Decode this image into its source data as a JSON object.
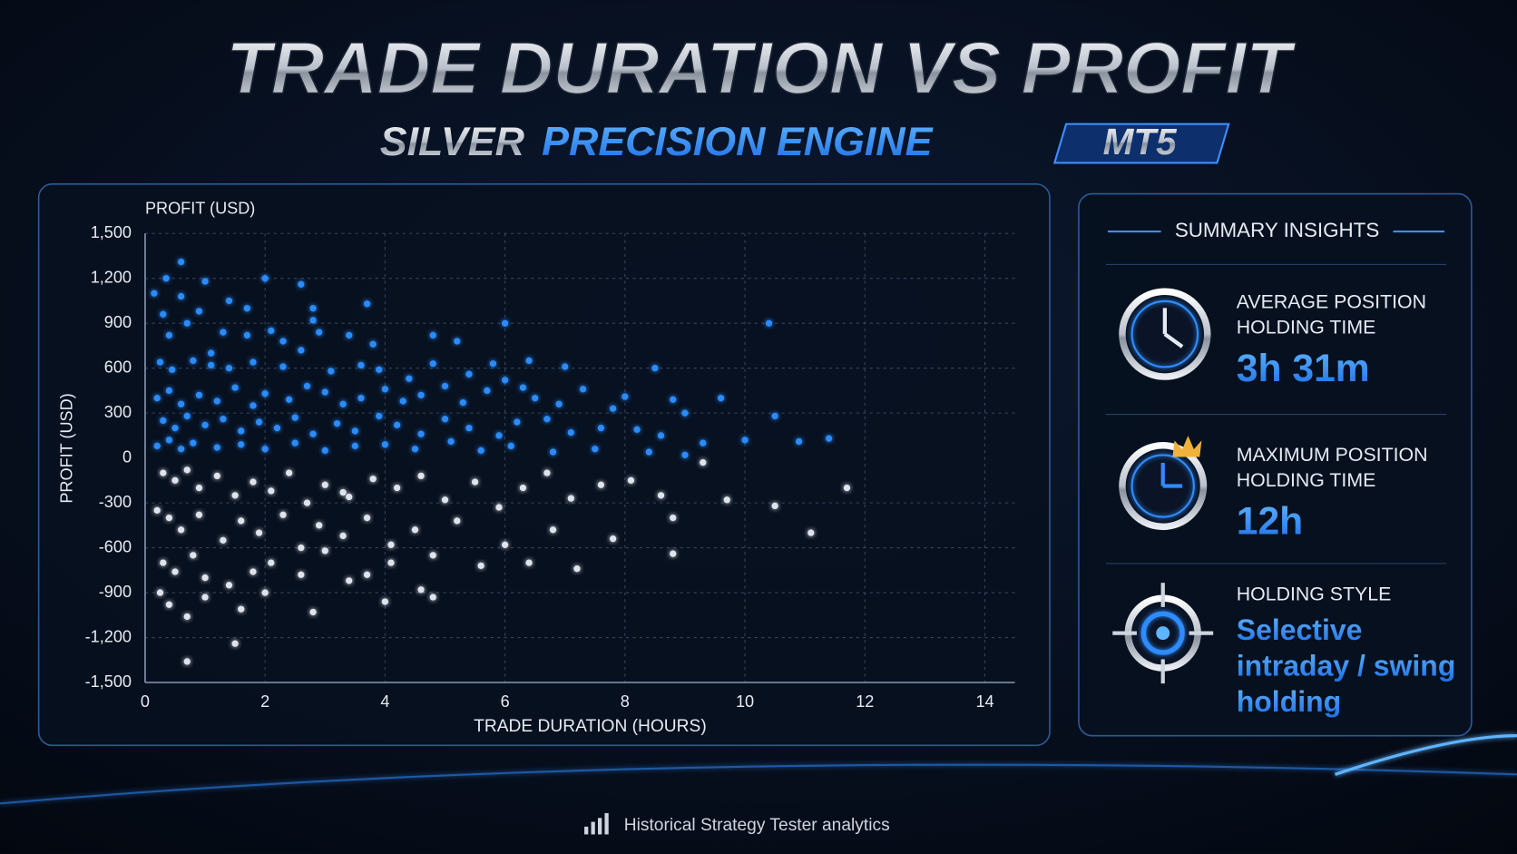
{
  "header": {
    "title": "TRADE DURATION VS PROFIT",
    "subtitle_silver": "SILVER",
    "subtitle_blue": "PRECISION ENGINE",
    "badge": "MT5"
  },
  "chart_data": {
    "type": "scatter",
    "xlabel": "TRADE DURATION (HOURS)",
    "ylabel": "PROFIT (USD)",
    "xlim": [
      0,
      14.5
    ],
    "ylim": [
      -1500,
      1500
    ],
    "xticks": [
      0,
      2,
      4,
      6,
      8,
      10,
      12,
      14
    ],
    "yticks": [
      {
        "value": 1500,
        "label": "1,500"
      },
      {
        "value": 1200,
        "label": "1,200"
      },
      900,
      600,
      300,
      0,
      -300,
      -600,
      -900,
      {
        "value": -1200,
        "label": "-1,200"
      },
      {
        "value": -1500,
        "label": "-1,500"
      }
    ],
    "grid": true,
    "positive_color": "#2a8cff",
    "negative_color": "#dfe4ec",
    "x": [
      0.15,
      0.35,
      0.6,
      0.3,
      0.6,
      1.0,
      0.9,
      1.4,
      1.7,
      2.0,
      2.6,
      2.8,
      2.8,
      3.7,
      6.0,
      10.4,
      0.4,
      0.7,
      1.1,
      1.3,
      1.7,
      2.1,
      2.3,
      2.9,
      3.4,
      3.8,
      4.8,
      5.2,
      0.25,
      0.45,
      0.8,
      1.1,
      1.4,
      1.8,
      2.3,
      2.6,
      3.1,
      3.6,
      3.9,
      4.4,
      4.8,
      5.4,
      5.8,
      6.4,
      7.0,
      8.5,
      0.2,
      0.4,
      0.6,
      0.9,
      1.2,
      1.5,
      1.8,
      2.0,
      2.4,
      2.7,
      3.0,
      3.3,
      3.6,
      4.0,
      4.3,
      4.6,
      5.0,
      5.3,
      5.7,
      6.0,
      6.3,
      6.5,
      6.9,
      7.3,
      7.8,
      8.0,
      8.8,
      9.0,
      9.6,
      10.5,
      0.3,
      0.5,
      0.7,
      1.0,
      1.3,
      1.6,
      1.9,
      2.2,
      2.5,
      2.8,
      3.2,
      3.5,
      3.9,
      4.2,
      4.6,
      5.0,
      5.4,
      5.9,
      6.2,
      6.7,
      7.1,
      7.6,
      8.2,
      8.6,
      9.3,
      10.0,
      10.9,
      11.4,
      0.2,
      0.4,
      0.6,
      0.8,
      1.2,
      1.6,
      2.0,
      2.5,
      3.0,
      3.5,
      4.0,
      4.5,
      5.1,
      5.6,
      6.1,
      6.8,
      7.5,
      8.4,
      9.0,
      0.3,
      0.5,
      0.7,
      0.9,
      1.2,
      1.5,
      1.8,
      2.1,
      2.4,
      2.7,
      3.0,
      3.4,
      3.8,
      4.2,
      4.6,
      5.0,
      5.5,
      5.9,
      6.3,
      6.7,
      7.1,
      7.6,
      8.1,
      8.6,
      9.3,
      9.7,
      10.5,
      11.7,
      0.2,
      0.4,
      0.6,
      0.9,
      1.3,
      1.6,
      1.9,
      2.3,
      2.6,
      2.9,
      3.3,
      3.7,
      4.1,
      4.5,
      4.8,
      5.2,
      5.6,
      6.0,
      6.4,
      6.8,
      7.2,
      7.8,
      8.8,
      8.8,
      11.1,
      0.3,
      0.5,
      0.8,
      1.0,
      1.4,
      1.8,
      2.1,
      2.6,
      3.0,
      3.4,
      3.7,
      4.1,
      4.8,
      0.4,
      0.7,
      1.0,
      1.6,
      2.0,
      2.8,
      4.0,
      0.7,
      1.5,
      0.25,
      4.6,
      3.3
    ],
    "values": [
      1100,
      1200,
      1310,
      960,
      1080,
      1180,
      980,
      1050,
      1000,
      1200,
      1160,
      1000,
      920,
      1030,
      900,
      900,
      820,
      900,
      700,
      840,
      820,
      850,
      780,
      840,
      820,
      760,
      820,
      780,
      640,
      590,
      650,
      620,
      600,
      640,
      610,
      720,
      580,
      620,
      590,
      530,
      630,
      560,
      630,
      650,
      610,
      600,
      400,
      450,
      360,
      420,
      380,
      470,
      350,
      430,
      390,
      480,
      440,
      360,
      400,
      460,
      380,
      420,
      480,
      370,
      450,
      520,
      470,
      400,
      360,
      460,
      330,
      410,
      390,
      300,
      400,
      280,
      250,
      200,
      280,
      220,
      260,
      180,
      240,
      200,
      270,
      160,
      230,
      180,
      280,
      220,
      160,
      260,
      200,
      150,
      240,
      260,
      170,
      200,
      190,
      150,
      100,
      120,
      110,
      130,
      80,
      120,
      60,
      100,
      70,
      90,
      60,
      100,
      50,
      80,
      90,
      60,
      110,
      50,
      80,
      40,
      60,
      40,
      20,
      -100,
      -150,
      -80,
      -200,
      -120,
      -250,
      -160,
      -220,
      -100,
      -300,
      -180,
      -260,
      -140,
      -200,
      -120,
      -280,
      -160,
      -330,
      -200,
      -100,
      -270,
      -180,
      -150,
      -250,
      -30,
      -280,
      -320,
      -200,
      -350,
      -400,
      -480,
      -380,
      -550,
      -420,
      -500,
      -380,
      -600,
      -450,
      -520,
      -400,
      -580,
      -480,
      -650,
      -420,
      -720,
      -580,
      -700,
      -480,
      -740,
      -540,
      -400,
      -640,
      -500,
      -700,
      -760,
      -650,
      -800,
      -850,
      -760,
      -700,
      -780,
      -620,
      -820,
      -780,
      -700,
      -930,
      -980,
      -1060,
      -930,
      -1010,
      -900,
      -1030,
      -960,
      -1360,
      -1240,
      -900,
      -880,
      -230
    ]
  },
  "summary": {
    "title": "SUMMARY INSIGHTS",
    "items": [
      {
        "label": [
          "AVERAGE POSITION",
          "HOLDING TIME"
        ],
        "value": [
          "3h 31m"
        ]
      },
      {
        "label": [
          "MAXIMUM POSITION",
          "HOLDING TIME"
        ],
        "value": [
          "12h"
        ]
      },
      {
        "label": [
          "HOLDING STYLE"
        ],
        "value": [
          "Selective",
          "intraday / swing",
          "holding"
        ]
      }
    ]
  },
  "footer": "Historical Strategy Tester analytics"
}
